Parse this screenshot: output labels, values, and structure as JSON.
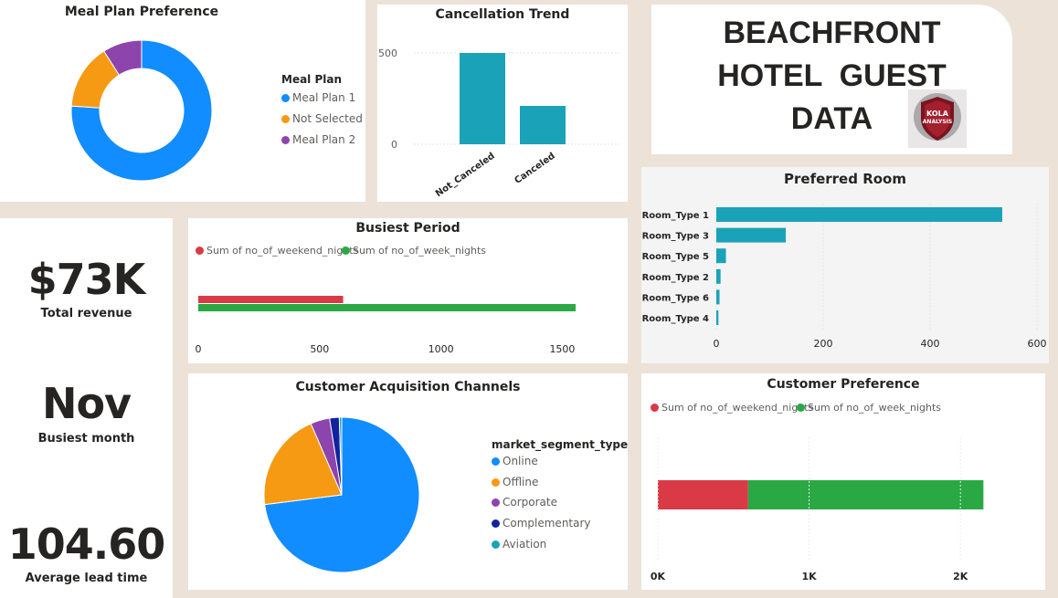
{
  "header": {
    "title_lines": [
      "BEACHFRONT",
      "HOTEL  GUEST",
      "DATA"
    ],
    "logo_text": [
      "KOLA",
      "ANALYSIS"
    ]
  },
  "kpis": {
    "revenue": {
      "value": "$73K",
      "label": "Total revenue"
    },
    "month": {
      "value": "Nov",
      "label": "Busiest month"
    },
    "lead": {
      "value": "104.60",
      "label": "Average lead time"
    }
  },
  "chart_data": [
    {
      "id": "meal",
      "type": "pie",
      "title": "Meal Plan Preference",
      "legend_title": "Meal Plan",
      "labels": [
        "Meal Plan 1",
        "Not Selected",
        "Meal Plan 2"
      ],
      "values": [
        76,
        15,
        9
      ],
      "colors": [
        "#118dff",
        "#f59a12",
        "#8e44ad"
      ]
    },
    {
      "id": "cancel",
      "type": "bar",
      "title": "Cancellation Trend",
      "categories": [
        "Not_Canceled",
        "Canceled"
      ],
      "values": [
        500,
        210
      ],
      "ylim": [
        0,
        500
      ],
      "yticks": [
        "0",
        "500"
      ],
      "color": "#1aa3b8"
    },
    {
      "id": "busiest",
      "type": "bar",
      "title": "Busiest Period",
      "series": [
        {
          "name": "Sum of no_of_weekend_nights",
          "values": [
            597
          ],
          "color": "#d93a46"
        },
        {
          "name": "Sum of no_of_week_nights",
          "values": [
            1555
          ],
          "color": "#2aa844"
        }
      ],
      "xlim": [
        0,
        1600
      ],
      "xticks": [
        "0",
        "500",
        "1000",
        "1500"
      ]
    },
    {
      "id": "room",
      "type": "bar",
      "title": "Preferred Room",
      "categories": [
        "Room_Type 1",
        "Room_Type 3",
        "Room_Type 5",
        "Room_Type 2",
        "Room_Type 6",
        "Room_Type 4"
      ],
      "values": [
        535,
        130,
        18,
        8,
        6,
        4
      ],
      "xlim": [
        0,
        600
      ],
      "xticks": [
        "0",
        "200",
        "400",
        "600"
      ],
      "color": "#1aa3b8"
    },
    {
      "id": "channels",
      "type": "pie",
      "title": "Customer Acquisition Channels",
      "legend_title": "market_segment_type",
      "labels": [
        "Online",
        "Offline",
        "Corporate",
        "Complementary",
        "Aviation"
      ],
      "values": [
        73,
        20.5,
        4,
        2,
        0.5
      ],
      "colors": [
        "#118dff",
        "#f59a12",
        "#8e44ad",
        "#12239e",
        "#1aa3b8"
      ]
    },
    {
      "id": "preference",
      "type": "bar",
      "title": "Customer Preference",
      "series": [
        {
          "name": "Sum of no_of_weekend_nights",
          "values": [
            597
          ],
          "color": "#d93a46"
        },
        {
          "name": "Sum of no_of_week_nights",
          "values": [
            1555
          ],
          "color": "#2aa844"
        }
      ],
      "stacked": true,
      "xlim": [
        0,
        2500
      ],
      "xticks": [
        "0K",
        "1K",
        "2K"
      ]
    }
  ]
}
